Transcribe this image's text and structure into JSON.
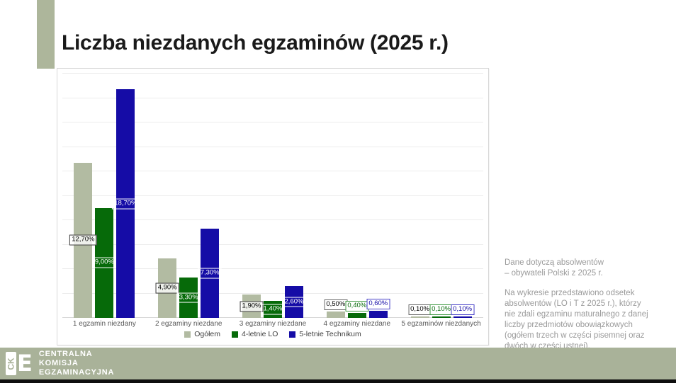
{
  "slide": {
    "title": "Liczba niezdanych egzaminów (2025 r.)"
  },
  "chart_data": {
    "type": "bar",
    "title": "",
    "xlabel": "",
    "ylabel": "",
    "ylim": [
      0,
      20
    ],
    "grid_step": 2,
    "grid": true,
    "legend_position": "bottom",
    "value_format": "percent, comma decimal, 2 dp (e.g. 12,70%)",
    "categories": [
      "1 egzamin niezdany",
      "2 egzaminy niezdane",
      "3 egzaminy niezdane",
      "4 egzaminy niezdane",
      "5 egzaminów niezdanych"
    ],
    "series": [
      {
        "name": "Ogółem",
        "color": "#b2bba2",
        "values": [
          12.7,
          4.9,
          1.9,
          0.5,
          0.1
        ],
        "labels": [
          "12,70%",
          "4,90%",
          "1,90%",
          "0,50%",
          "0,10%"
        ],
        "label_inside": {
          "bg": "rgba(255,255,255,0.78)",
          "border": "#3c3c3c",
          "text": "#000000"
        },
        "label_outside": {
          "bg": "#ffffff",
          "border": "#6b6b6b",
          "text": "#000000"
        }
      },
      {
        "name": "4-letnie LO",
        "color": "#066a09",
        "values": [
          9.0,
          3.3,
          1.4,
          0.4,
          0.1
        ],
        "labels": [
          "9,00%",
          "3,30%",
          "1,40%",
          "0,40%",
          "0,10%"
        ],
        "label_inside": {
          "bg": "transparent",
          "border": "#ffffff",
          "text": "#ffffff"
        },
        "label_outside": {
          "bg": "#ffffff",
          "border": "#3f9a42",
          "text": "#066a09"
        }
      },
      {
        "name": "5-letnie Technikum",
        "color": "#150ca6",
        "values": [
          18.7,
          7.3,
          2.6,
          0.6,
          0.1
        ],
        "labels": [
          "18,70%",
          "7,30%",
          "2,60%",
          "0,60%",
          "0,10%"
        ],
        "label_inside": {
          "bg": "transparent",
          "border": "#ffffff",
          "text": "#ffffff"
        },
        "label_outside": {
          "bg": "#ffffff",
          "border": "#4a43c9",
          "text": "#150ca6"
        }
      }
    ]
  },
  "side_note": {
    "line1": "Dane dotyczą  absolwentów",
    "line2": "– obywateli Polski z 2025 r.",
    "para2": "Na wykresie przedstawiono odsetek absolwentów (LO i T z 2025 r.), którzy nie zdali egzaminu maturalnego z danej liczby przedmiotów obowiązkowych (ogółem trzech w części pisemnej oraz dwóch w części ustnej)."
  },
  "footer": {
    "logo_mark": "CK",
    "logo_e": "E",
    "org_lines": [
      "CENTRALNA",
      "KOMISJA",
      "EGZAMINACYJNA"
    ]
  },
  "colors": {
    "accent_olive": "#a9b299",
    "footer_olive": "#a9b299",
    "bottom_strip": "#0e0e0e",
    "series_ogolem": "#b2bba2",
    "series_lo": "#066a09",
    "series_technikum": "#150ca6",
    "gridline": "#ececec",
    "note_text": "#9a9a9a"
  }
}
